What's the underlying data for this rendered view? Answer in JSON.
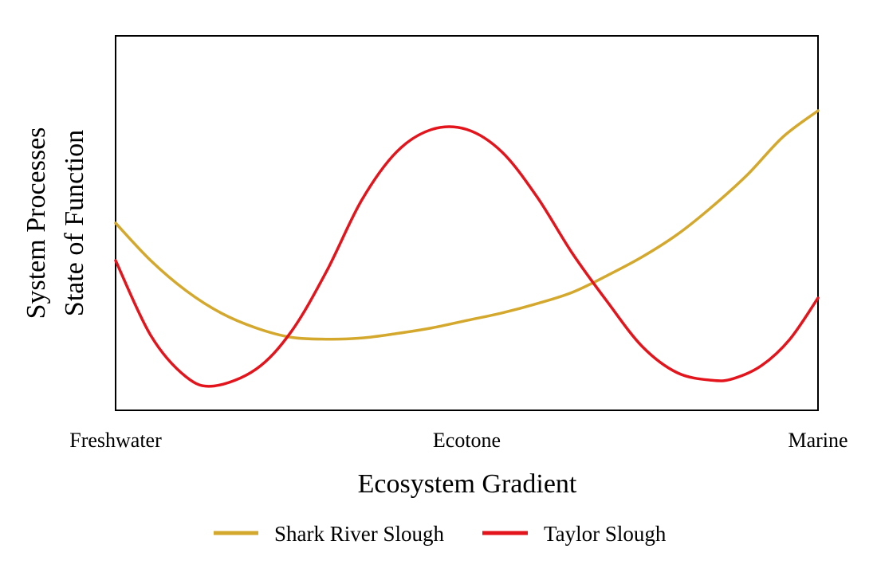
{
  "chart_data": {
    "type": "line",
    "title": "",
    "xlabel": "Ecosystem Gradient",
    "ylabel_lines": [
      "System Processes",
      "State of Function"
    ],
    "x_ticks": [
      {
        "x": 0,
        "label": "Freshwater"
      },
      {
        "x": 0.5,
        "label": "Ecotone"
      },
      {
        "x": 1,
        "label": "Marine"
      }
    ],
    "xlim": [
      0,
      1
    ],
    "ylim": [
      0,
      1
    ],
    "y_ticks": "none",
    "grid": false,
    "legend_position": "bottom",
    "series": [
      {
        "name": "Shark River Slough",
        "color": "#D4A82C",
        "x": [
          0,
          0.05,
          0.1,
          0.15,
          0.2,
          0.25,
          0.3,
          0.35,
          0.4,
          0.45,
          0.5,
          0.55,
          0.6,
          0.65,
          0.7,
          0.75,
          0.8,
          0.85,
          0.9,
          0.95,
          1
        ],
        "y": [
          0.5,
          0.4,
          0.32,
          0.26,
          0.22,
          0.195,
          0.19,
          0.193,
          0.205,
          0.22,
          0.24,
          0.26,
          0.285,
          0.315,
          0.36,
          0.41,
          0.47,
          0.545,
          0.63,
          0.73,
          0.8
        ]
      },
      {
        "name": "Taylor Slough",
        "color": "#E3141B",
        "x": [
          0,
          0.05,
          0.1,
          0.14,
          0.2,
          0.25,
          0.3,
          0.35,
          0.4,
          0.45,
          0.5,
          0.55,
          0.6,
          0.65,
          0.7,
          0.75,
          0.8,
          0.85,
          0.88,
          0.92,
          0.96,
          1
        ],
        "y": [
          0.4,
          0.2,
          0.09,
          0.065,
          0.11,
          0.21,
          0.37,
          0.56,
          0.69,
          0.75,
          0.75,
          0.69,
          0.57,
          0.42,
          0.29,
          0.17,
          0.1,
          0.08,
          0.085,
          0.12,
          0.19,
          0.3
        ]
      }
    ]
  }
}
